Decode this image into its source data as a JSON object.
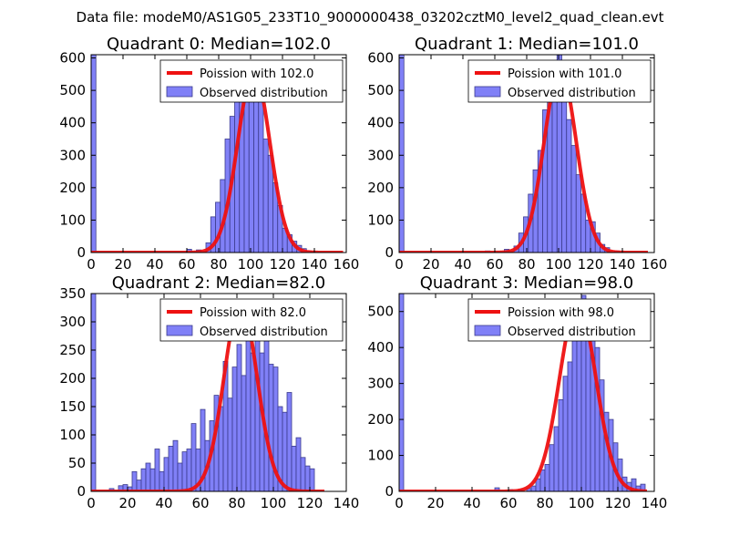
{
  "suptitle": "Data file: modeM0/AS1G05_233T10_9000000438_03202cztM0_level2_quad_clean.evt",
  "chart_data": [
    {
      "type": "bar",
      "title": "Quadrant 0: Median=102.0",
      "legend_line": "Poission with 102.0",
      "legend_bar": "Observed distribution",
      "xlim": [
        0,
        160
      ],
      "ylim": [
        0,
        610
      ],
      "xticks": [
        0,
        20,
        40,
        60,
        80,
        100,
        120,
        140,
        160
      ],
      "yticks": [
        0,
        100,
        200,
        300,
        400,
        500,
        600
      ],
      "lambda": 102.0,
      "peak": 560,
      "curve_range": [
        0,
        158
      ],
      "bin_width": 3,
      "bins_x": [
        0,
        60,
        66,
        72,
        75,
        78,
        81,
        84,
        87,
        90,
        93,
        96,
        99,
        102,
        105,
        108,
        111,
        114,
        117,
        120,
        123,
        126,
        129,
        132,
        135,
        138
      ],
      "bins_y": [
        610,
        10,
        8,
        30,
        110,
        155,
        225,
        350,
        420,
        480,
        540,
        590,
        570,
        545,
        480,
        350,
        300,
        215,
        145,
        75,
        55,
        35,
        22,
        12,
        5,
        3
      ]
    },
    {
      "type": "bar",
      "title": "Quadrant 1: Median=101.0",
      "legend_line": "Poission with 101.0",
      "legend_bar": "Observed distribution",
      "xlim": [
        0,
        160
      ],
      "ylim": [
        0,
        610
      ],
      "xticks": [
        0,
        20,
        40,
        60,
        80,
        100,
        120,
        140,
        160
      ],
      "yticks": [
        0,
        100,
        200,
        300,
        400,
        500,
        600
      ],
      "lambda": 101.0,
      "peak": 565,
      "curve_range": [
        0,
        156
      ],
      "bin_width": 3,
      "bins_x": [
        0,
        54,
        66,
        72,
        75,
        78,
        81,
        84,
        87,
        90,
        93,
        96,
        99,
        102,
        105,
        108,
        111,
        114,
        117,
        120,
        123,
        126,
        129,
        135
      ],
      "bins_y": [
        610,
        5,
        10,
        20,
        60,
        110,
        180,
        255,
        315,
        440,
        540,
        560,
        610,
        480,
        410,
        330,
        240,
        180,
        100,
        95,
        60,
        25,
        15,
        5
      ]
    },
    {
      "type": "bar",
      "title": "Quadrant 2: Median=82.0",
      "legend_line": "Poission with 82.0",
      "legend_bar": "Observed distribution",
      "xlim": [
        0,
        140
      ],
      "ylim": [
        0,
        350
      ],
      "xticks": [
        0,
        20,
        40,
        60,
        80,
        100,
        120,
        140
      ],
      "yticks": [
        0,
        50,
        100,
        150,
        200,
        250,
        300,
        350
      ],
      "lambda": 82.0,
      "peak": 335,
      "curve_range": [
        0,
        128
      ],
      "bin_width": 2.5,
      "bins_x": [
        0,
        10,
        15,
        17.5,
        20,
        22.5,
        25,
        27.5,
        30,
        32.5,
        35,
        37.5,
        40,
        42.5,
        45,
        47.5,
        50,
        52.5,
        55,
        57.5,
        60,
        62.5,
        65,
        67.5,
        70,
        72.5,
        75,
        77.5,
        80,
        82.5,
        85,
        87.5,
        90,
        92.5,
        95,
        97.5,
        100,
        102.5,
        105,
        107.5,
        110,
        112.5,
        115,
        117.5,
        120
      ],
      "bins_y": [
        350,
        5,
        10,
        12,
        8,
        35,
        20,
        40,
        50,
        40,
        75,
        35,
        60,
        80,
        90,
        50,
        70,
        75,
        120,
        75,
        145,
        90,
        125,
        170,
        150,
        230,
        165,
        220,
        260,
        205,
        295,
        245,
        285,
        245,
        315,
        225,
        220,
        150,
        140,
        175,
        80,
        95,
        60,
        45,
        40
      ]
    },
    {
      "type": "bar",
      "title": "Quadrant 3: Median=98.0",
      "legend_line": "Poission with 98.0",
      "legend_bar": "Observed distribution",
      "xlim": [
        0,
        140
      ],
      "ylim": [
        0,
        550
      ],
      "xticks": [
        0,
        20,
        40,
        60,
        80,
        100,
        120,
        140
      ],
      "yticks": [
        0,
        100,
        200,
        300,
        400,
        500
      ],
      "lambda": 98.0,
      "peak": 525,
      "curve_range": [
        0,
        136
      ],
      "bin_width": 2.5,
      "bins_x": [
        0,
        52.5,
        60,
        65,
        70,
        72.5,
        75,
        77.5,
        80,
        82.5,
        85,
        87.5,
        90,
        92.5,
        95,
        97.5,
        100,
        102.5,
        105,
        107.5,
        110,
        112.5,
        115,
        117.5,
        120,
        122.5,
        125,
        127.5,
        130,
        132.5
      ],
      "bins_y": [
        550,
        10,
        5,
        5,
        8,
        15,
        35,
        60,
        75,
        130,
        180,
        255,
        320,
        360,
        455,
        420,
        545,
        450,
        480,
        400,
        310,
        220,
        200,
        135,
        90,
        40,
        25,
        35,
        15,
        20
      ]
    }
  ]
}
